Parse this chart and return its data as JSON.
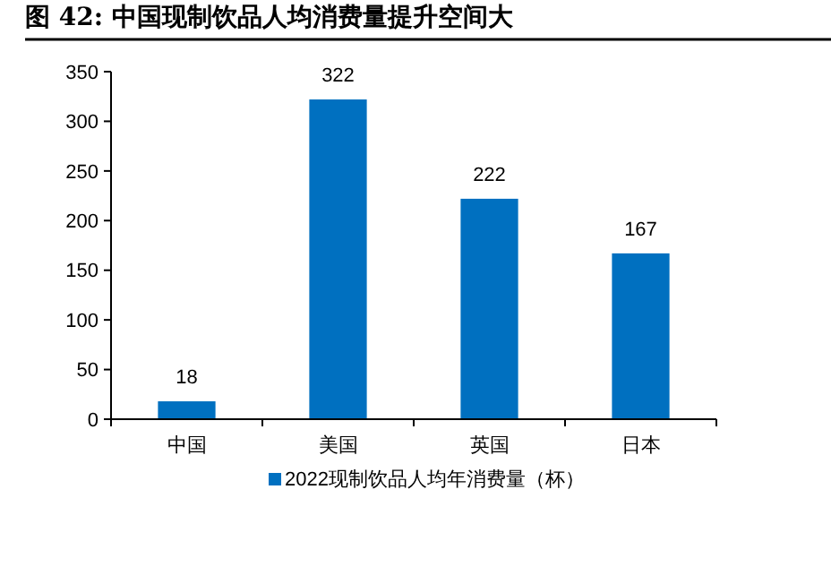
{
  "chart_data": {
    "type": "bar",
    "title": "图 42:  中国现制饮品人均消费量提升空间大",
    "categories": [
      "中国",
      "美国",
      "英国",
      "日本"
    ],
    "series": [
      {
        "name": "2022现制饮品人均年消费量（杯）",
        "color": "#0070c0",
        "values": [
          18,
          322,
          222,
          167
        ]
      }
    ],
    "ylim": [
      0,
      350
    ],
    "yticks": [
      0,
      50,
      100,
      150,
      200,
      250,
      300,
      350
    ],
    "data_labels": true,
    "legend": "bottom",
    "grid": false
  }
}
